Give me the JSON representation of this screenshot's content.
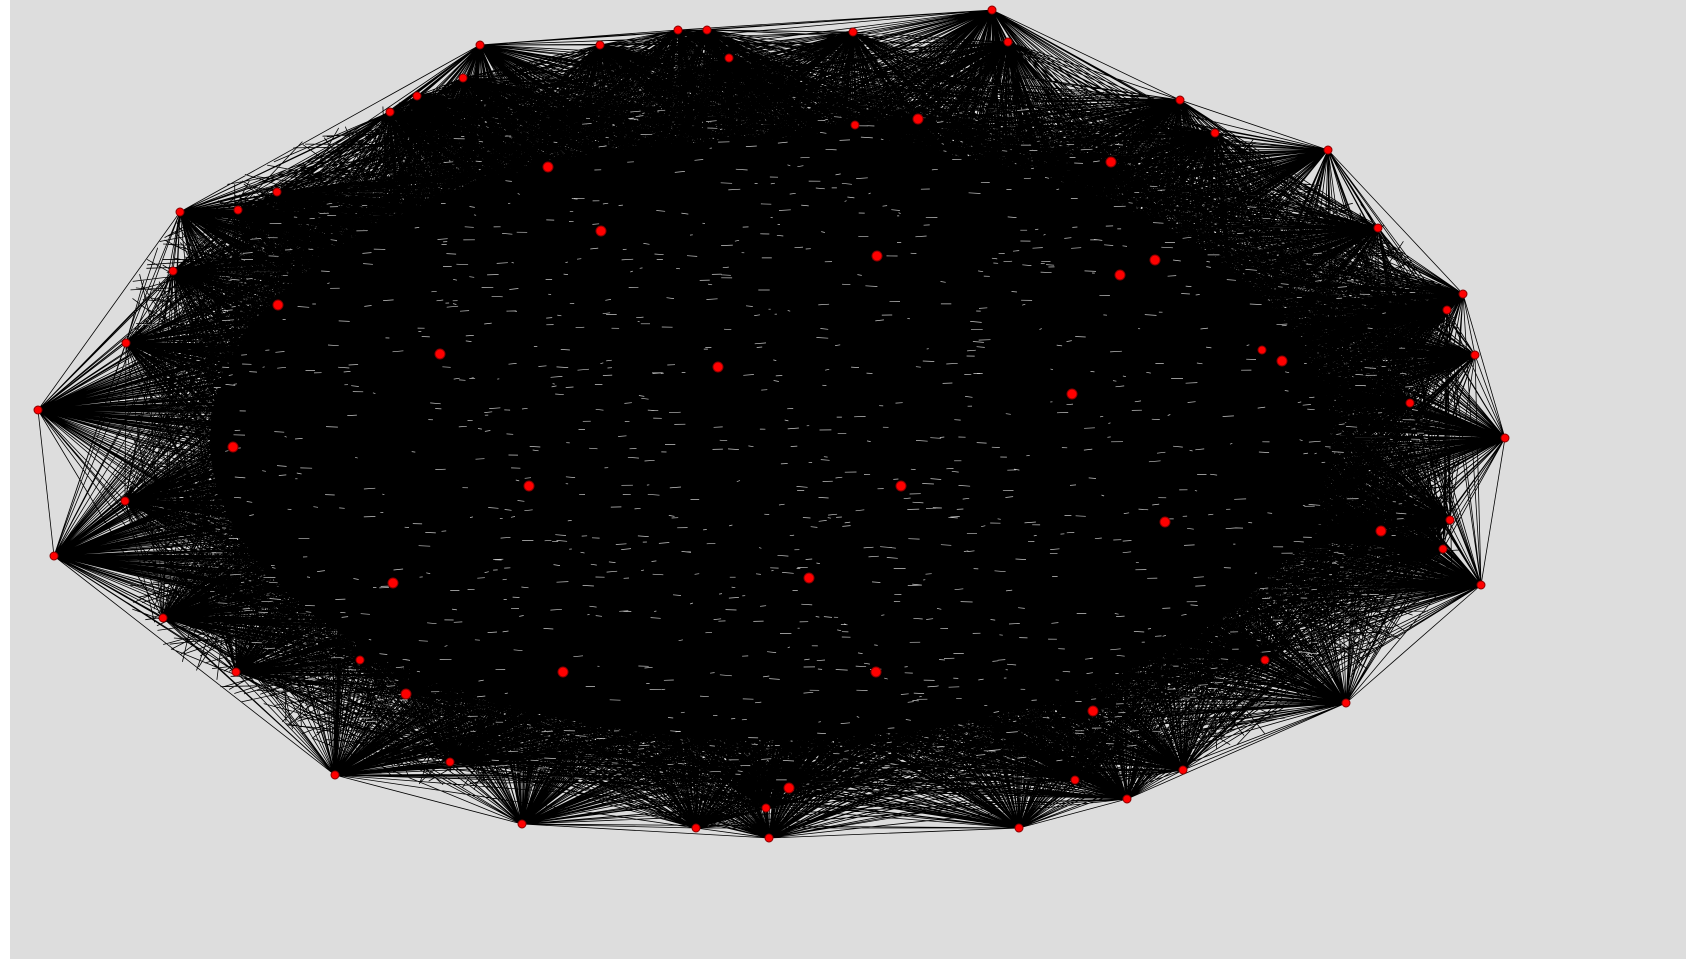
{
  "colors": {
    "background": "#dddddd",
    "edge": "#000000",
    "node": "#ff0000",
    "node_outline": "#8b0000"
  },
  "graph": {
    "outer_node_count": 48,
    "inner_node_count": 22
  }
}
